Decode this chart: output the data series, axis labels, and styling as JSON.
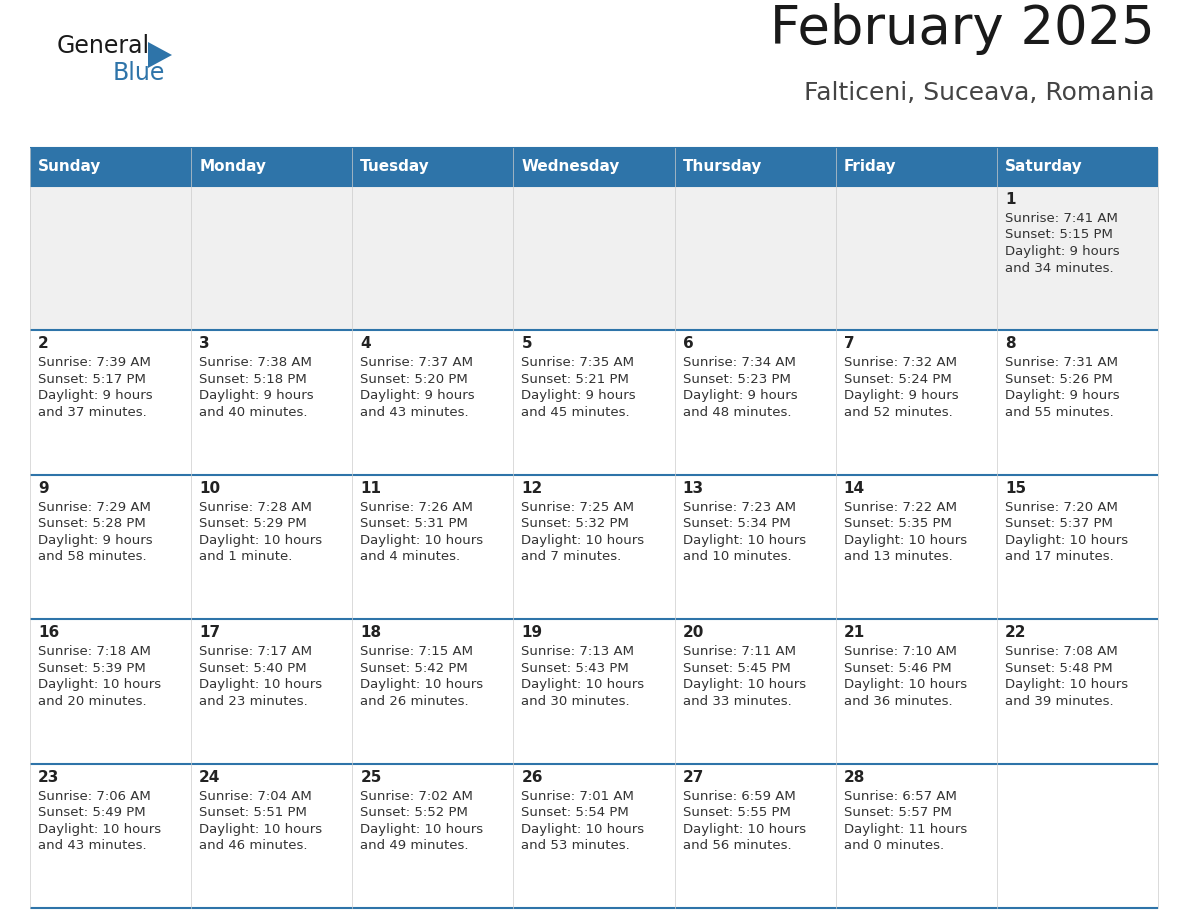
{
  "title": "February 2025",
  "subtitle": "Falticeni, Suceava, Romania",
  "header_bg": "#2E74A9",
  "header_text_color": "#FFFFFF",
  "cell_bg": "#FFFFFF",
  "row0_bg": "#F0F0F0",
  "border_color": "#2E74A9",
  "text_color": "#333333",
  "day_num_color": "#222222",
  "day_headers": [
    "Sunday",
    "Monday",
    "Tuesday",
    "Wednesday",
    "Thursday",
    "Friday",
    "Saturday"
  ],
  "days": [
    {
      "day": 1,
      "col": 6,
      "row": 0,
      "sunrise": "7:41 AM",
      "sunset": "5:15 PM",
      "daylight": "9 hours and 34 minutes."
    },
    {
      "day": 2,
      "col": 0,
      "row": 1,
      "sunrise": "7:39 AM",
      "sunset": "5:17 PM",
      "daylight": "9 hours and 37 minutes."
    },
    {
      "day": 3,
      "col": 1,
      "row": 1,
      "sunrise": "7:38 AM",
      "sunset": "5:18 PM",
      "daylight": "9 hours and 40 minutes."
    },
    {
      "day": 4,
      "col": 2,
      "row": 1,
      "sunrise": "7:37 AM",
      "sunset": "5:20 PM",
      "daylight": "9 hours and 43 minutes."
    },
    {
      "day": 5,
      "col": 3,
      "row": 1,
      "sunrise": "7:35 AM",
      "sunset": "5:21 PM",
      "daylight": "9 hours and 45 minutes."
    },
    {
      "day": 6,
      "col": 4,
      "row": 1,
      "sunrise": "7:34 AM",
      "sunset": "5:23 PM",
      "daylight": "9 hours and 48 minutes."
    },
    {
      "day": 7,
      "col": 5,
      "row": 1,
      "sunrise": "7:32 AM",
      "sunset": "5:24 PM",
      "daylight": "9 hours and 52 minutes."
    },
    {
      "day": 8,
      "col": 6,
      "row": 1,
      "sunrise": "7:31 AM",
      "sunset": "5:26 PM",
      "daylight": "9 hours and 55 minutes."
    },
    {
      "day": 9,
      "col": 0,
      "row": 2,
      "sunrise": "7:29 AM",
      "sunset": "5:28 PM",
      "daylight": "9 hours and 58 minutes."
    },
    {
      "day": 10,
      "col": 1,
      "row": 2,
      "sunrise": "7:28 AM",
      "sunset": "5:29 PM",
      "daylight": "10 hours and 1 minute."
    },
    {
      "day": 11,
      "col": 2,
      "row": 2,
      "sunrise": "7:26 AM",
      "sunset": "5:31 PM",
      "daylight": "10 hours and 4 minutes."
    },
    {
      "day": 12,
      "col": 3,
      "row": 2,
      "sunrise": "7:25 AM",
      "sunset": "5:32 PM",
      "daylight": "10 hours and 7 minutes."
    },
    {
      "day": 13,
      "col": 4,
      "row": 2,
      "sunrise": "7:23 AM",
      "sunset": "5:34 PM",
      "daylight": "10 hours and 10 minutes."
    },
    {
      "day": 14,
      "col": 5,
      "row": 2,
      "sunrise": "7:22 AM",
      "sunset": "5:35 PM",
      "daylight": "10 hours and 13 minutes."
    },
    {
      "day": 15,
      "col": 6,
      "row": 2,
      "sunrise": "7:20 AM",
      "sunset": "5:37 PM",
      "daylight": "10 hours and 17 minutes."
    },
    {
      "day": 16,
      "col": 0,
      "row": 3,
      "sunrise": "7:18 AM",
      "sunset": "5:39 PM",
      "daylight": "10 hours and 20 minutes."
    },
    {
      "day": 17,
      "col": 1,
      "row": 3,
      "sunrise": "7:17 AM",
      "sunset": "5:40 PM",
      "daylight": "10 hours and 23 minutes."
    },
    {
      "day": 18,
      "col": 2,
      "row": 3,
      "sunrise": "7:15 AM",
      "sunset": "5:42 PM",
      "daylight": "10 hours and 26 minutes."
    },
    {
      "day": 19,
      "col": 3,
      "row": 3,
      "sunrise": "7:13 AM",
      "sunset": "5:43 PM",
      "daylight": "10 hours and 30 minutes."
    },
    {
      "day": 20,
      "col": 4,
      "row": 3,
      "sunrise": "7:11 AM",
      "sunset": "5:45 PM",
      "daylight": "10 hours and 33 minutes."
    },
    {
      "day": 21,
      "col": 5,
      "row": 3,
      "sunrise": "7:10 AM",
      "sunset": "5:46 PM",
      "daylight": "10 hours and 36 minutes."
    },
    {
      "day": 22,
      "col": 6,
      "row": 3,
      "sunrise": "7:08 AM",
      "sunset": "5:48 PM",
      "daylight": "10 hours and 39 minutes."
    },
    {
      "day": 23,
      "col": 0,
      "row": 4,
      "sunrise": "7:06 AM",
      "sunset": "5:49 PM",
      "daylight": "10 hours and 43 minutes."
    },
    {
      "day": 24,
      "col": 1,
      "row": 4,
      "sunrise": "7:04 AM",
      "sunset": "5:51 PM",
      "daylight": "10 hours and 46 minutes."
    },
    {
      "day": 25,
      "col": 2,
      "row": 4,
      "sunrise": "7:02 AM",
      "sunset": "5:52 PM",
      "daylight": "10 hours and 49 minutes."
    },
    {
      "day": 26,
      "col": 3,
      "row": 4,
      "sunrise": "7:01 AM",
      "sunset": "5:54 PM",
      "daylight": "10 hours and 53 minutes."
    },
    {
      "day": 27,
      "col": 4,
      "row": 4,
      "sunrise": "6:59 AM",
      "sunset": "5:55 PM",
      "daylight": "10 hours and 56 minutes."
    },
    {
      "day": 28,
      "col": 5,
      "row": 4,
      "sunrise": "6:57 AM",
      "sunset": "5:57 PM",
      "daylight": "11 hours and 0 minutes."
    }
  ],
  "num_rows": 5,
  "num_cols": 7,
  "logo_general_color": "#1a1a1a",
  "logo_blue_color": "#2E74A9",
  "logo_triangle_color": "#2E74A9"
}
